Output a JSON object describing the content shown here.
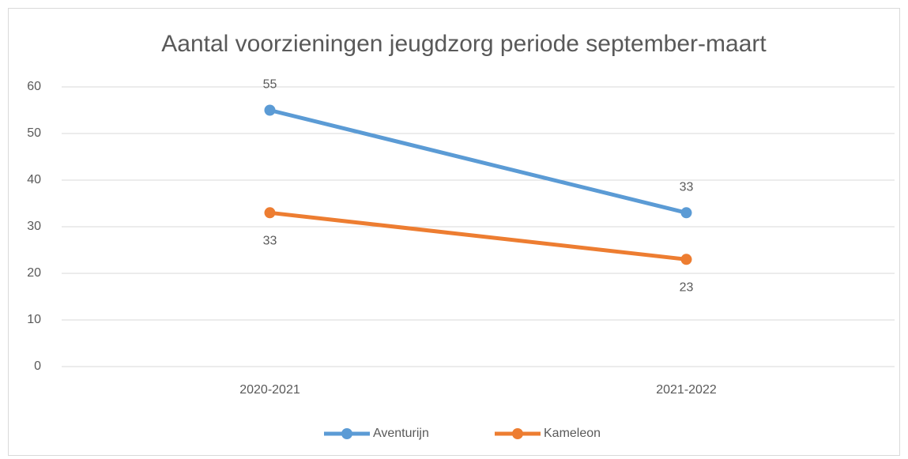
{
  "chart_data": {
    "type": "line",
    "title": "Aantal voorzieningen jeugdzorg periode september-maart",
    "categories": [
      "2020-2021",
      "2021-2022"
    ],
    "series": [
      {
        "name": "Aventurijn",
        "color": "#5b9bd5",
        "values": [
          55,
          33
        ],
        "label_position": "above"
      },
      {
        "name": "Kameleon",
        "color": "#ed7d31",
        "values": [
          33,
          23
        ],
        "label_position": "below"
      }
    ],
    "ylim": [
      0,
      60
    ],
    "yticks": [
      0,
      10,
      20,
      30,
      40,
      50,
      60
    ],
    "grid": true,
    "legend": "bottom"
  }
}
